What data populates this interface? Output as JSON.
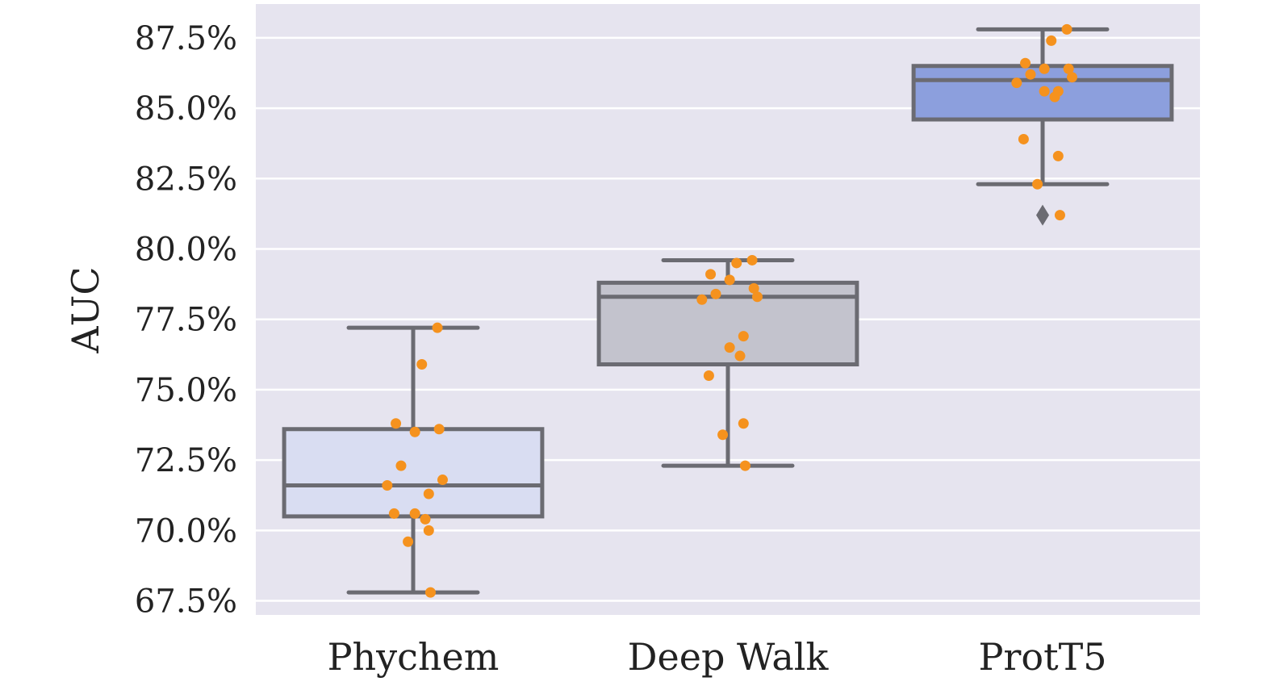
{
  "chart_data": {
    "type": "box",
    "ylabel": "AUC",
    "xlabel": "",
    "ylim": [
      67.0,
      88.7
    ],
    "grid": true,
    "yticks": [
      67.5,
      70.0,
      72.5,
      75.0,
      77.5,
      80.0,
      82.5,
      85.0,
      87.5
    ],
    "ytick_labels": [
      "67.5%",
      "70.0%",
      "72.5%",
      "75.0%",
      "77.5%",
      "80.0%",
      "82.5%",
      "85.0%",
      "87.5%"
    ],
    "categories": [
      "Phychem",
      "Deep Walk",
      "ProtT5"
    ],
    "boxes": [
      {
        "category": "Phychem",
        "whisker_low": 67.8,
        "q1": 70.5,
        "median": 71.6,
        "q3": 73.6,
        "whisker_high": 77.2,
        "outliers": []
      },
      {
        "category": "Deep Walk",
        "whisker_low": 72.3,
        "q1": 75.9,
        "median": 78.3,
        "q3": 78.8,
        "whisker_high": 79.6,
        "outliers": []
      },
      {
        "category": "ProtT5",
        "whisker_low": 82.3,
        "q1": 84.6,
        "median": 86.0,
        "q3": 86.5,
        "whisker_high": 87.8,
        "outliers": [
          81.2
        ]
      }
    ],
    "points": [
      {
        "category": "Phychem",
        "values": [
          77.2,
          75.9,
          73.8,
          73.5,
          73.6,
          72.3,
          71.8,
          71.6,
          71.3,
          70.6,
          70.4,
          70.6,
          70.0,
          69.6,
          67.8
        ]
      },
      {
        "category": "Deep Walk",
        "values": [
          79.6,
          79.5,
          79.1,
          78.9,
          78.6,
          78.4,
          78.3,
          78.2,
          76.9,
          76.5,
          76.2,
          75.5,
          73.8,
          73.4,
          72.3
        ]
      },
      {
        "category": "ProtT5",
        "values": [
          87.8,
          87.4,
          86.6,
          86.4,
          86.4,
          86.2,
          86.1,
          85.9,
          85.6,
          85.6,
          85.4,
          83.9,
          83.3,
          82.3,
          81.2
        ]
      }
    ],
    "colors": {
      "background": "#e6e4ef",
      "grid": "#ffffff",
      "box_fills": [
        "#d9ddf2",
        "#c3c3cd",
        "#8c9fdd"
      ],
      "box_edge": "#6b6b72",
      "points": "#f5921e"
    }
  }
}
